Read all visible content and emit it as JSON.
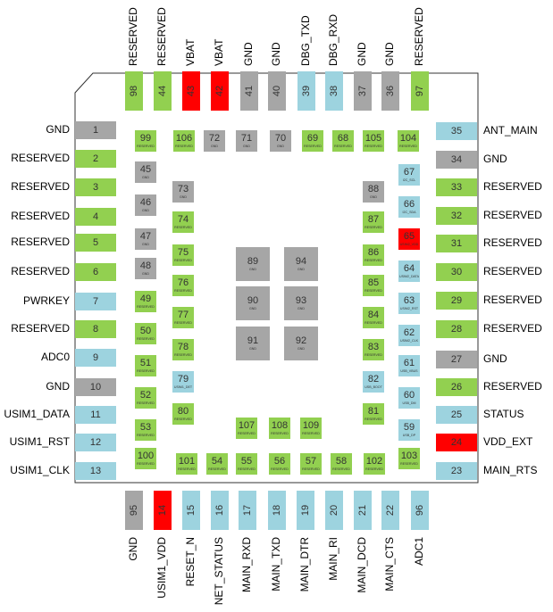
{
  "top": [
    {
      "number": "98",
      "label": "RESERVED",
      "color": "#92d050"
    },
    {
      "number": "44",
      "label": "RESERVED",
      "color": "#92d050"
    },
    {
      "number": "43",
      "label": "VBAT",
      "color": "#ff0000"
    },
    {
      "number": "42",
      "label": "VBAT",
      "color": "#ff0000"
    },
    {
      "number": "41",
      "label": "GND",
      "color": "#a6a6a6"
    },
    {
      "number": "40",
      "label": "GND",
      "color": "#a6a6a6"
    },
    {
      "number": "39",
      "label": "DBG_TXD",
      "color": "#9dd3df"
    },
    {
      "number": "38",
      "label": "DBG_RXD",
      "color": "#9dd3df"
    },
    {
      "number": "37",
      "label": "GND",
      "color": "#a6a6a6"
    },
    {
      "number": "36",
      "label": "GND",
      "color": "#a6a6a6"
    },
    {
      "number": "97",
      "label": "RESERVED",
      "color": "#92d050"
    }
  ],
  "left": [
    {
      "number": "1",
      "label": "GND",
      "color": "#a6a6a6"
    },
    {
      "number": "2",
      "label": "RESERVED",
      "color": "#92d050"
    },
    {
      "number": "3",
      "label": "RESERVED",
      "color": "#92d050"
    },
    {
      "number": "4",
      "label": "RESERVED",
      "color": "#92d050"
    },
    {
      "number": "5",
      "label": "RESERVED",
      "color": "#92d050"
    },
    {
      "number": "6",
      "label": "RESERVED",
      "color": "#92d050"
    },
    {
      "number": "7",
      "label": "PWRKEY",
      "color": "#9dd3df"
    },
    {
      "number": "8",
      "label": "RESERVED",
      "color": "#92d050"
    },
    {
      "number": "9",
      "label": "ADC0",
      "color": "#9dd3df"
    },
    {
      "number": "10",
      "label": "GND",
      "color": "#a6a6a6"
    },
    {
      "number": "11",
      "label": "USIM1_DATA",
      "color": "#9dd3df"
    },
    {
      "number": "12",
      "label": "USIM1_RST",
      "color": "#9dd3df"
    },
    {
      "number": "13",
      "label": "USIM1_CLK",
      "color": "#9dd3df"
    }
  ],
  "right": [
    {
      "number": "35",
      "label": "ANT_MAIN",
      "color": "#9dd3df"
    },
    {
      "number": "34",
      "label": "GND",
      "color": "#a6a6a6"
    },
    {
      "number": "33",
      "label": "RESERVED",
      "color": "#92d050"
    },
    {
      "number": "32",
      "label": "RESERVED",
      "color": "#92d050"
    },
    {
      "number": "31",
      "label": "RESERVED",
      "color": "#92d050"
    },
    {
      "number": "30",
      "label": "RESERVED",
      "color": "#92d050"
    },
    {
      "number": "29",
      "label": "RESERVED",
      "color": "#92d050"
    },
    {
      "number": "28",
      "label": "RESERVED",
      "color": "#92d050"
    },
    {
      "number": "27",
      "label": "GND",
      "color": "#a6a6a6"
    },
    {
      "number": "26",
      "label": "RESERVED",
      "color": "#92d050"
    },
    {
      "number": "25",
      "label": "STATUS",
      "color": "#9dd3df"
    },
    {
      "number": "24",
      "label": "VDD_EXT",
      "color": "#ff0000"
    },
    {
      "number": "23",
      "label": "MAIN_RTS",
      "color": "#9dd3df"
    }
  ],
  "bottom": [
    {
      "number": "95",
      "label": "GND",
      "color": "#a6a6a6"
    },
    {
      "number": "14",
      "label": "USIM1_VDD",
      "color": "#ff0000"
    },
    {
      "number": "15",
      "label": "RESET_N",
      "color": "#9dd3df"
    },
    {
      "number": "16",
      "label": "NET_STATUS",
      "color": "#9dd3df"
    },
    {
      "number": "17",
      "label": "MAIN_RXD",
      "color": "#9dd3df"
    },
    {
      "number": "18",
      "label": "MAIN_TXD",
      "color": "#9dd3df"
    },
    {
      "number": "19",
      "label": "MAIN_DTR",
      "color": "#9dd3df"
    },
    {
      "number": "20",
      "label": "MAIN_RI",
      "color": "#9dd3df"
    },
    {
      "number": "21",
      "label": "MAIN_DCD",
      "color": "#9dd3df"
    },
    {
      "number": "22",
      "label": "MAIN_CTS",
      "color": "#9dd3df"
    },
    {
      "number": "96",
      "label": "ADC1",
      "color": "#9dd3df"
    }
  ],
  "inner": [
    {
      "number": "99",
      "label": "RESERVED",
      "color": "#92d050"
    },
    {
      "number": "106",
      "label": "RESERVED",
      "color": "#92d050"
    },
    {
      "number": "72",
      "label": "GND",
      "color": "#a6a6a6"
    },
    {
      "number": "71",
      "label": "GND",
      "color": "#a6a6a6"
    },
    {
      "number": "70",
      "label": "GND",
      "color": "#a6a6a6"
    },
    {
      "number": "69",
      "label": "RESERVED",
      "color": "#92d050"
    },
    {
      "number": "68",
      "label": "RESERVED",
      "color": "#92d050"
    },
    {
      "number": "105",
      "label": "RESERVED",
      "color": "#92d050"
    },
    {
      "number": "104",
      "label": "RESERVED",
      "color": "#92d050"
    },
    {
      "number": "45",
      "label": "GND",
      "color": "#a6a6a6"
    },
    {
      "number": "46",
      "label": "GND",
      "color": "#a6a6a6"
    },
    {
      "number": "47",
      "label": "GND",
      "color": "#a6a6a6"
    },
    {
      "number": "48",
      "label": "GND",
      "color": "#a6a6a6"
    },
    {
      "number": "49",
      "label": "RESERVED",
      "color": "#92d050"
    },
    {
      "number": "50",
      "label": "RESERVED",
      "color": "#92d050"
    },
    {
      "number": "51",
      "label": "RESERVED",
      "color": "#92d050"
    },
    {
      "number": "52",
      "label": "RESERVED",
      "color": "#92d050"
    },
    {
      "number": "53",
      "label": "RESERVED",
      "color": "#92d050"
    },
    {
      "number": "100",
      "label": "RESERVED",
      "color": "#92d050"
    },
    {
      "number": "73",
      "label": "GND",
      "color": "#a6a6a6"
    },
    {
      "number": "74",
      "label": "RESERVED",
      "color": "#92d050"
    },
    {
      "number": "75",
      "label": "RESERVED",
      "color": "#92d050"
    },
    {
      "number": "76",
      "label": "RESERVED",
      "color": "#92d050"
    },
    {
      "number": "77",
      "label": "RESERVED",
      "color": "#92d050"
    },
    {
      "number": "78",
      "label": "RESERVED",
      "color": "#92d050"
    },
    {
      "number": "79",
      "label": "USIM1_DET",
      "color": "#9dd3df"
    },
    {
      "number": "80",
      "label": "RESERVED",
      "color": "#92d050"
    },
    {
      "number": "101",
      "label": "RESERVED",
      "color": "#92d050"
    },
    {
      "number": "54",
      "label": "RESERVED",
      "color": "#92d050"
    },
    {
      "number": "55",
      "label": "RESERVED",
      "color": "#92d050"
    },
    {
      "number": "56",
      "label": "RESERVED",
      "color": "#92d050"
    },
    {
      "number": "57",
      "label": "RESERVED",
      "color": "#92d050"
    },
    {
      "number": "58",
      "label": "RESERVED",
      "color": "#92d050"
    },
    {
      "number": "102",
      "label": "RESERVED",
      "color": "#92d050"
    },
    {
      "number": "103",
      "label": "RESERVED",
      "color": "#92d050"
    },
    {
      "number": "88",
      "label": "GND",
      "color": "#a6a6a6"
    },
    {
      "number": "87",
      "label": "RESERVED",
      "color": "#92d050"
    },
    {
      "number": "86",
      "label": "RESERVED",
      "color": "#92d050"
    },
    {
      "number": "85",
      "label": "RESERVED",
      "color": "#92d050"
    },
    {
      "number": "84",
      "label": "RESERVED",
      "color": "#92d050"
    },
    {
      "number": "83",
      "label": "RESERVED",
      "color": "#92d050"
    },
    {
      "number": "82",
      "label": "USB_BOOT",
      "color": "#9dd3df"
    },
    {
      "number": "81",
      "label": "RESERVED",
      "color": "#92d050"
    },
    {
      "number": "67",
      "label": "I2C_SCL",
      "color": "#9dd3df"
    },
    {
      "number": "66",
      "label": "I2C_SDA",
      "color": "#9dd3df"
    },
    {
      "number": "65",
      "label": "USIM2_VDD",
      "color": "#ff0000"
    },
    {
      "number": "64",
      "label": "USIM2_DATA",
      "color": "#9dd3df"
    },
    {
      "number": "63",
      "label": "USIM2_RST",
      "color": "#9dd3df"
    },
    {
      "number": "62",
      "label": "USIM2_CLK",
      "color": "#9dd3df"
    },
    {
      "number": "61",
      "label": "USB_VBUS",
      "color": "#9dd3df"
    },
    {
      "number": "60",
      "label": "USB_DM",
      "color": "#9dd3df"
    },
    {
      "number": "59",
      "label": "USB_DP",
      "color": "#9dd3df"
    },
    {
      "number": "89",
      "label": "GND",
      "color": "#a6a6a6"
    },
    {
      "number": "94",
      "label": "GND",
      "color": "#a6a6a6"
    },
    {
      "number": "90",
      "label": "GND",
      "color": "#a6a6a6"
    },
    {
      "number": "93",
      "label": "GND",
      "color": "#a6a6a6"
    },
    {
      "number": "91",
      "label": "GND",
      "color": "#a6a6a6"
    },
    {
      "number": "92",
      "label": "GND",
      "color": "#a6a6a6"
    },
    {
      "number": "107",
      "label": "RESERVED",
      "color": "#92d050"
    },
    {
      "number": "108",
      "label": "RESERVED",
      "color": "#92d050"
    },
    {
      "number": "109",
      "label": "RESERVED",
      "color": "#92d050"
    }
  ]
}
